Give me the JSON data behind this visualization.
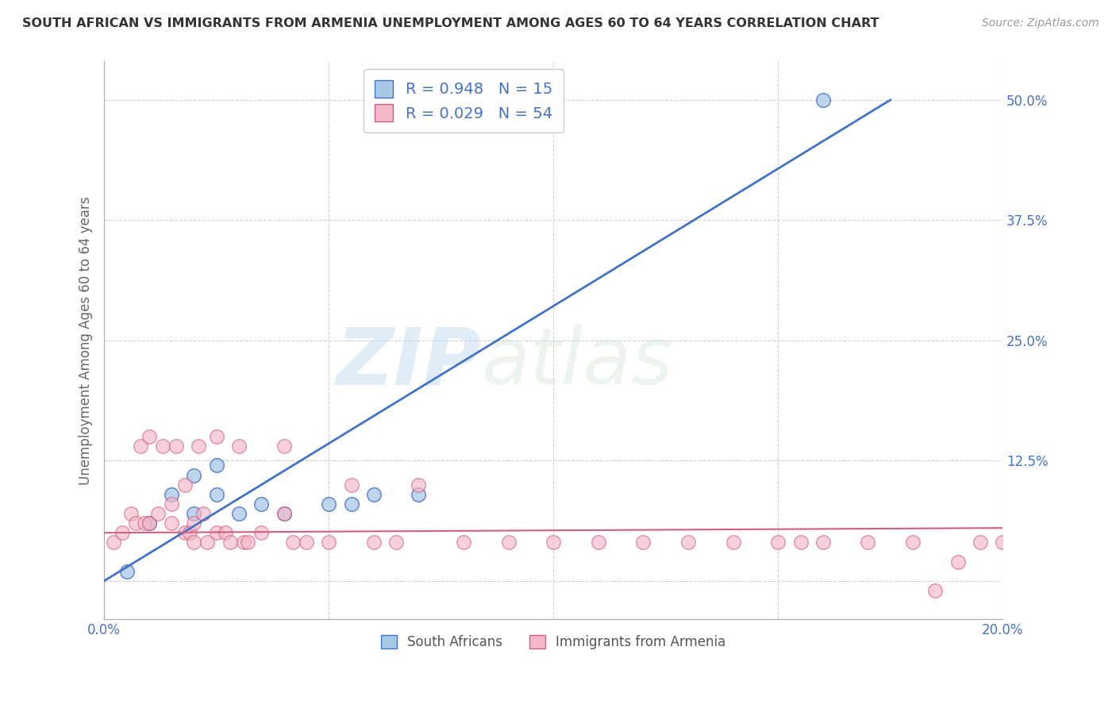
{
  "title": "SOUTH AFRICAN VS IMMIGRANTS FROM ARMENIA UNEMPLOYMENT AMONG AGES 60 TO 64 YEARS CORRELATION CHART",
  "source": "Source: ZipAtlas.com",
  "ylabel": "Unemployment Among Ages 60 to 64 years",
  "xlabel_sa": "South Africans",
  "xlabel_arm": "Immigrants from Armenia",
  "xlim": [
    0.0,
    0.2
  ],
  "ylim": [
    -0.04,
    0.54
  ],
  "R_sa": 0.948,
  "N_sa": 15,
  "R_arm": 0.029,
  "N_arm": 54,
  "color_sa": "#a8c8e8",
  "color_arm": "#f4b8c8",
  "line_color_sa": "#4472c4",
  "line_color_arm": "#d06080",
  "background_color": "#ffffff",
  "grid_color": "#d0d0d0",
  "watermark_zip": "ZIP",
  "watermark_atlas": "atlas",
  "sa_x": [
    0.005,
    0.01,
    0.015,
    0.02,
    0.02,
    0.025,
    0.025,
    0.03,
    0.035,
    0.04,
    0.05,
    0.055,
    0.06,
    0.07,
    0.16
  ],
  "sa_y": [
    0.01,
    0.06,
    0.09,
    0.07,
    0.11,
    0.09,
    0.12,
    0.07,
    0.08,
    0.07,
    0.08,
    0.08,
    0.09,
    0.09,
    0.5
  ],
  "arm_x": [
    0.002,
    0.004,
    0.006,
    0.007,
    0.008,
    0.009,
    0.01,
    0.01,
    0.012,
    0.013,
    0.015,
    0.015,
    0.016,
    0.018,
    0.018,
    0.019,
    0.02,
    0.02,
    0.021,
    0.022,
    0.023,
    0.025,
    0.025,
    0.027,
    0.028,
    0.03,
    0.031,
    0.032,
    0.035,
    0.04,
    0.04,
    0.042,
    0.045,
    0.05,
    0.055,
    0.06,
    0.065,
    0.07,
    0.08,
    0.09,
    0.1,
    0.11,
    0.12,
    0.13,
    0.14,
    0.15,
    0.155,
    0.16,
    0.17,
    0.18,
    0.185,
    0.19,
    0.195,
    0.2
  ],
  "arm_y": [
    0.04,
    0.05,
    0.07,
    0.06,
    0.14,
    0.06,
    0.15,
    0.06,
    0.07,
    0.14,
    0.08,
    0.06,
    0.14,
    0.05,
    0.1,
    0.05,
    0.06,
    0.04,
    0.14,
    0.07,
    0.04,
    0.05,
    0.15,
    0.05,
    0.04,
    0.14,
    0.04,
    0.04,
    0.05,
    0.07,
    0.14,
    0.04,
    0.04,
    0.04,
    0.1,
    0.04,
    0.04,
    0.1,
    0.04,
    0.04,
    0.04,
    0.04,
    0.04,
    0.04,
    0.04,
    0.04,
    0.04,
    0.04,
    0.04,
    0.04,
    -0.01,
    0.02,
    0.04,
    0.04
  ],
  "sa_line_x": [
    0.0,
    0.175
  ],
  "sa_line_y": [
    0.0,
    0.5
  ],
  "arm_line_x": [
    0.0,
    0.2
  ],
  "arm_line_y": [
    0.05,
    0.055
  ]
}
